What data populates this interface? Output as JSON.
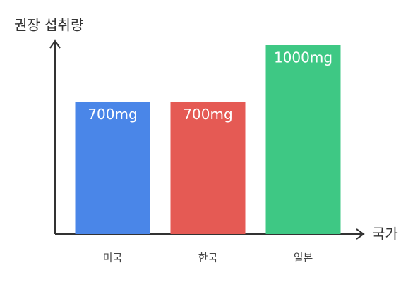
{
  "chart_data": {
    "type": "bar",
    "y_label": "권장 섭취량",
    "x_label": "국가",
    "categories": [
      "미국",
      "한국",
      "일본"
    ],
    "values": [
      700,
      700,
      1000
    ],
    "value_labels": [
      "700mg",
      "700mg",
      "1000mg"
    ],
    "colors": [
      "#4a86e8",
      "#e55a54",
      "#3ec884"
    ],
    "ylim": [
      0,
      1000
    ]
  }
}
